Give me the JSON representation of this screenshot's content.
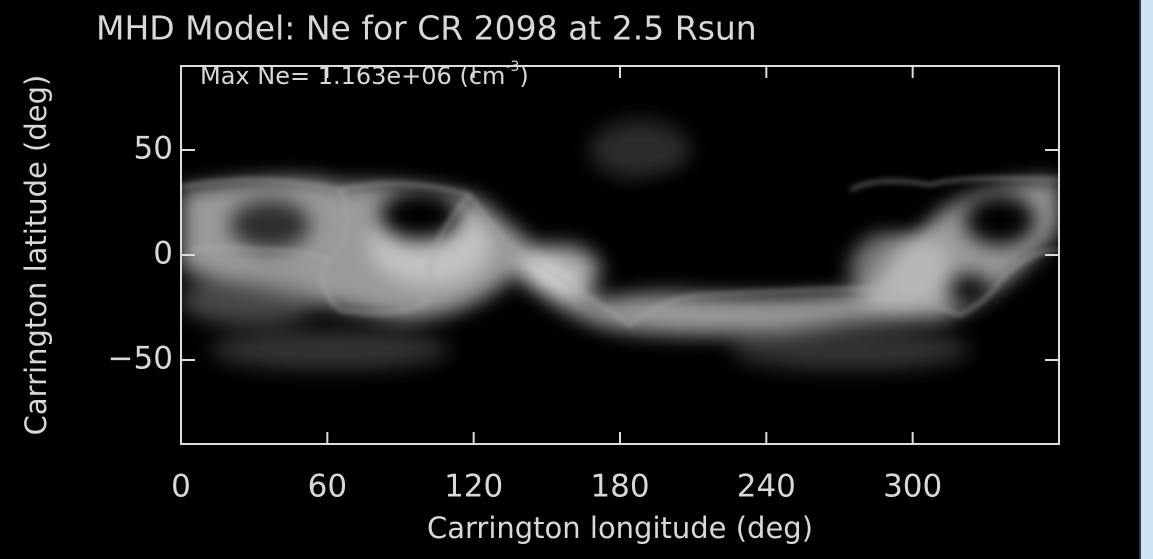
{
  "chart_data": {
    "type": "image",
    "title": "MHD Model:  Ne for CR 2098 at 2.5 Rsun",
    "annotation": {
      "text": "Max Ne= 1.163e+06 (cm",
      "superscript": "-3",
      "suffix": ")"
    },
    "x_label": "Carrington longitude (deg)",
    "y_label": "Carrington latitude (deg)",
    "xlim": [
      0,
      360
    ],
    "ylim": [
      -90,
      90
    ],
    "xticks": [
      0,
      60,
      120,
      180,
      240,
      300
    ],
    "yticks": [
      {
        "value": -50,
        "label": "−50"
      },
      0,
      50
    ]
  }
}
